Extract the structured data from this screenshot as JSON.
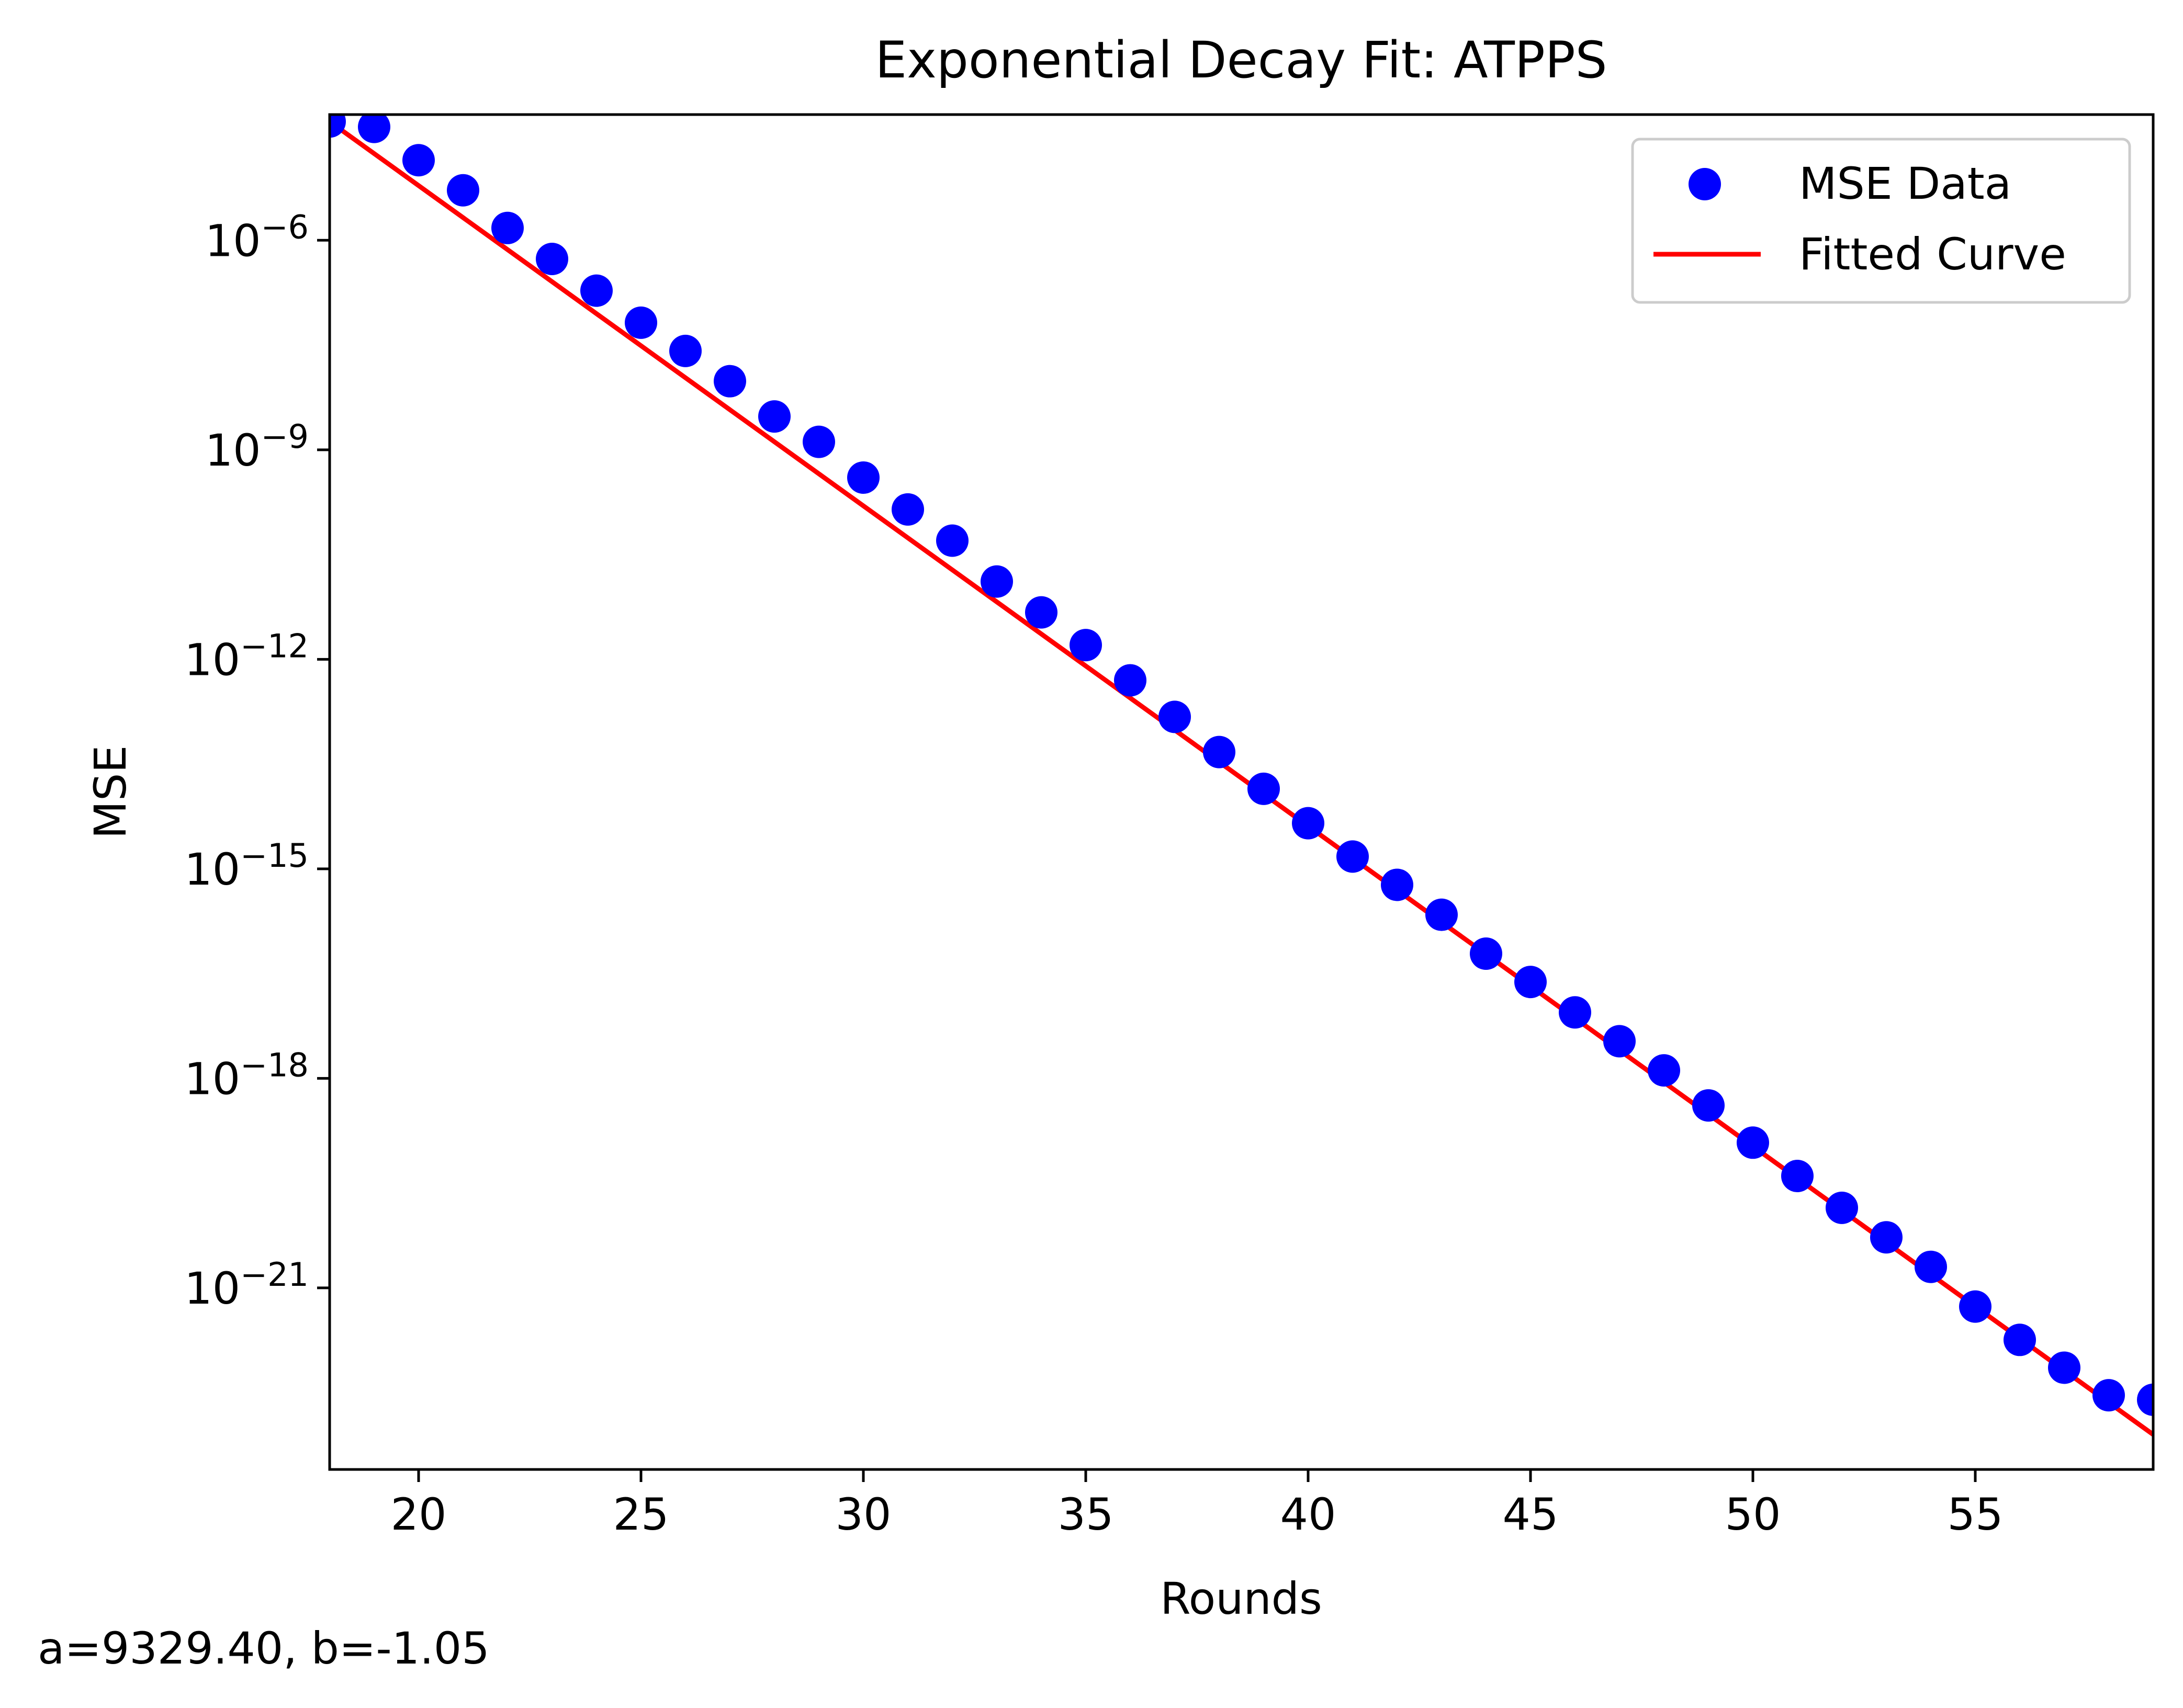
{
  "chart_data": {
    "type": "scatter",
    "title": "Exponential Decay Fit: ATPPS",
    "xlabel": "Rounds",
    "ylabel": "MSE",
    "yscale": "log",
    "xlim": [
      18,
      59
    ],
    "ylim_log10": [
      -23.6,
      -4.2
    ],
    "x_ticks": [
      {
        "value": 20,
        "label": "20"
      },
      {
        "value": 25,
        "label": "25"
      },
      {
        "value": 30,
        "label": "30"
      },
      {
        "value": 35,
        "label": "35"
      },
      {
        "value": 40,
        "label": "40"
      },
      {
        "value": 45,
        "label": "45"
      },
      {
        "value": 50,
        "label": "50"
      },
      {
        "value": 55,
        "label": "55"
      }
    ],
    "y_ticks": [
      {
        "exp": -6,
        "base": "10",
        "sup": "−6"
      },
      {
        "exp": -9,
        "base": "10",
        "sup": "−9"
      },
      {
        "exp": -12,
        "base": "10",
        "sup": "−12"
      },
      {
        "exp": -15,
        "base": "10",
        "sup": "−15"
      },
      {
        "exp": -18,
        "base": "10",
        "sup": "−18"
      },
      {
        "exp": -21,
        "base": "10",
        "sup": "−21"
      }
    ],
    "series": [
      {
        "name": "MSE Data",
        "kind": "scatter",
        "color": "#0000ff",
        "x": [
          18,
          19,
          20,
          21,
          22,
          23,
          24,
          25,
          26,
          27,
          28,
          29,
          30,
          31,
          32,
          33,
          34,
          35,
          36,
          37,
          38,
          39,
          40,
          41,
          42,
          43,
          44,
          45,
          46,
          47,
          48,
          49,
          50,
          51,
          52,
          53,
          54,
          55,
          56,
          57,
          58,
          59
        ],
        "y": [
          "1e-4.3",
          "4.2e-5",
          "1.4e-5",
          "5.2e-6",
          "1.5e-6",
          "5.4e-7",
          "1.9e-7",
          "6.6e-8",
          "2.6e-8",
          "9.6e-9",
          "3.0e-9",
          "1.3e-9",
          "4.0e-10",
          "1.4e-10",
          "5.0e-11",
          "1.3e-11",
          "4.7e-12",
          "1.6e-12",
          "5.0e-13",
          "1.5e-13",
          "4.7e-14",
          "1.4e-14",
          "4.5e-15",
          "1.5e-15",
          "5.9e-16",
          "2.2e-16",
          "6.1e-17",
          "2.4e-17",
          "8.8e-18",
          "3.4e-18",
          "1.3e-18",
          "4.1e-19",
          "1.2e-19",
          "4.0e-20",
          "1.4e-20",
          "5.3e-21",
          "2.0e-21",
          "5.4e-22",
          "1.8e-22",
          "7.2e-23",
          "2.9e-23",
          "2.5e-23"
        ]
      },
      {
        "name": "Fitted Curve",
        "kind": "line",
        "color": "#ff0000",
        "x": [
          18,
          59
        ],
        "y": [
          "1e-4.3",
          "1e-23.1"
        ]
      }
    ],
    "legend": {
      "position": "top-right",
      "entries": [
        "MSE Data",
        "Fitted Curve"
      ]
    },
    "annotation": "a=9329.40, b=-1.05",
    "grid": false
  }
}
